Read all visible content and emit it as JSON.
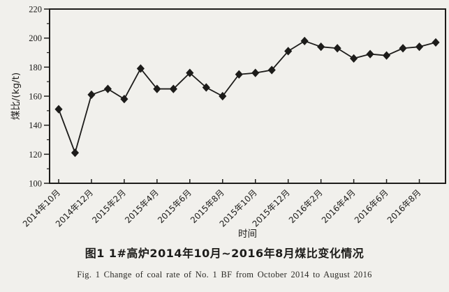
{
  "colors": {
    "paper": "#f1f0ec",
    "ink": "#1d1c1a"
  },
  "chart_data": {
    "type": "line",
    "title": "",
    "xlabel": "时间",
    "ylabel": "煤比/(kg/t)",
    "ylim": [
      100,
      220
    ],
    "y_ticks": [
      100,
      120,
      140,
      160,
      180,
      200,
      220
    ],
    "y_minor_ticks": [
      110,
      130,
      150,
      170,
      190,
      210
    ],
    "grid": "off",
    "legend": "none",
    "marker": "diamond",
    "line_color": "#1d1c1a",
    "x_tick_labels": [
      "2014年10月",
      "2014年12月",
      "2015年2月",
      "2015年4月",
      "2015年6月",
      "2015年8月",
      "2015年10月",
      "2015年12月",
      "2016年2月",
      "2016年4月",
      "2016年6月",
      "2016年8月"
    ],
    "x_tick_every": 2,
    "points_per_month": 1,
    "values": [
      151,
      121,
      161,
      165,
      158,
      179,
      165,
      165,
      176,
      166,
      160,
      175,
      176,
      178,
      191,
      198,
      194,
      193,
      186,
      189,
      188,
      193,
      194,
      197
    ]
  },
  "caption": {
    "figure_cn": "图1  1#高炉2014年10月~2016年8月煤比变化情况",
    "figure_en": "Fig. 1  Change of coal rate of No. 1 BF from October 2014 to August 2016"
  }
}
